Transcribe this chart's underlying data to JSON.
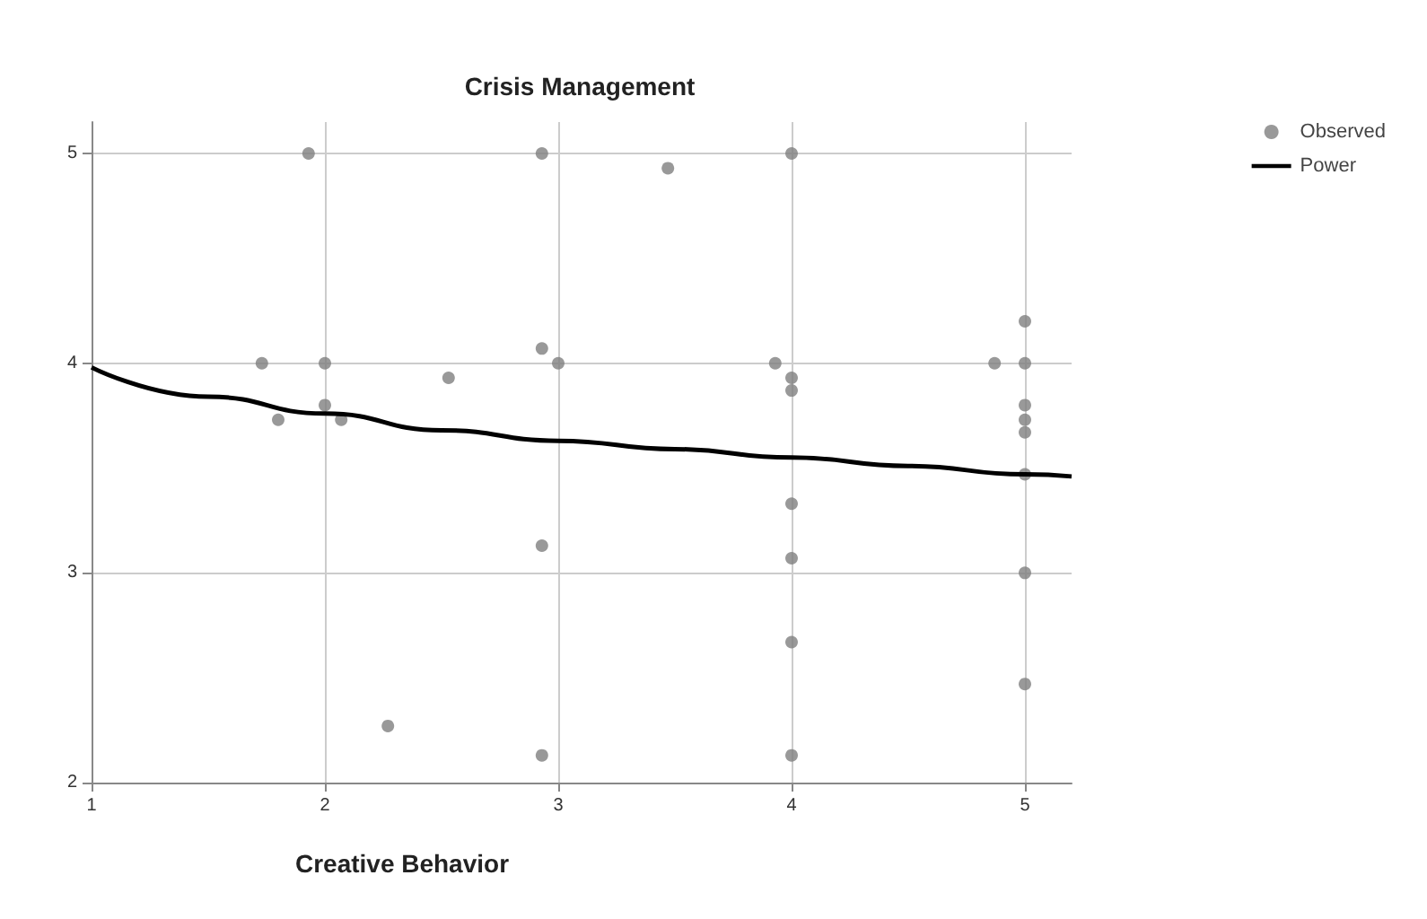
{
  "chart_data": {
    "type": "scatter",
    "title": "Crisis Management",
    "xlabel": "Creative Behavior",
    "series": [
      {
        "name": "Observed",
        "marker": "circle",
        "color": "#7f7f7f",
        "x": [
          1.93,
          2.93,
          3.47,
          4,
          1.73,
          2,
          2.93,
          3,
          2.53,
          2,
          1.8,
          2.07,
          2.93,
          2.27,
          2.93,
          3.93,
          4,
          4,
          4,
          4,
          4,
          4,
          4.87,
          5,
          5,
          5,
          5,
          5,
          5,
          5,
          5
        ],
        "values": [
          5,
          5,
          4.93,
          5,
          4,
          4,
          4.07,
          4,
          3.93,
          3.8,
          3.73,
          3.73,
          3.13,
          2.27,
          2.13,
          4,
          3.93,
          3.87,
          3.33,
          3.07,
          2.67,
          2.13,
          4,
          4.2,
          4,
          3.8,
          3.73,
          3.67,
          3.47,
          3,
          2.47
        ]
      },
      {
        "name": "Power",
        "type": "line",
        "color": "#000000",
        "x": [
          1,
          1.5,
          2,
          2.5,
          3,
          3.5,
          4,
          4.5,
          5,
          5.2
        ],
        "values": [
          3.98,
          3.84,
          3.76,
          3.68,
          3.63,
          3.59,
          3.55,
          3.51,
          3.47,
          3.46
        ]
      }
    ],
    "xlim": [
      1,
      5.2
    ],
    "ylim": [
      2,
      5.15
    ],
    "xticks": [
      1,
      2,
      3,
      4,
      5
    ],
    "yticks": [
      2,
      3,
      4,
      5
    ],
    "grid": true,
    "legend": "top right"
  }
}
